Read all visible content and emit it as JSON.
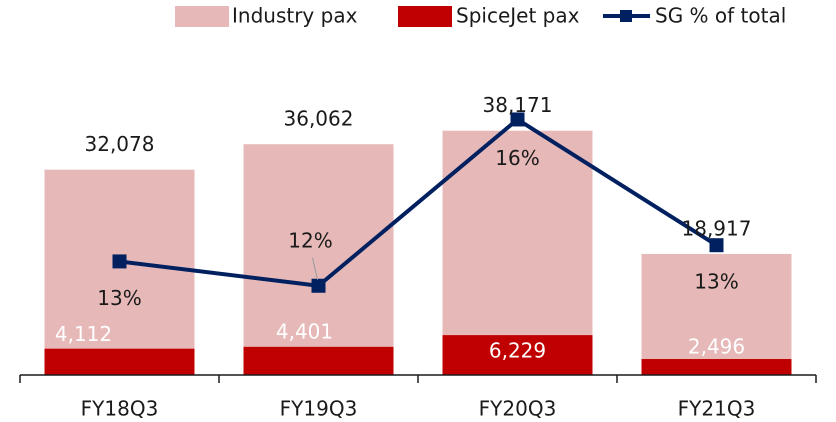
{
  "chart_data": {
    "type": "bar",
    "categories": [
      "FY18Q3",
      "FY19Q3",
      "FY20Q3",
      "FY21Q3"
    ],
    "series": [
      {
        "name": "Industry pax",
        "color": "#e6b9b8",
        "values": [
          32078,
          36062,
          38171,
          18917
        ],
        "value_labels": [
          "32,078",
          "36,062",
          "38,171",
          "18,917"
        ]
      },
      {
        "name": "SpiceJet pax",
        "color": "#c00000",
        "values": [
          4112,
          4401,
          6229,
          2496
        ],
        "value_labels": [
          "4,112",
          "4,401",
          "6,229",
          "2,496"
        ]
      },
      {
        "name": "SG % of total",
        "color": "#002060",
        "type": "line",
        "axis": "y2",
        "values": [
          12.8,
          12.2,
          16.3,
          13.2
        ],
        "value_labels": [
          "13%",
          "12%",
          "16%",
          "13%"
        ]
      }
    ],
    "ylim": [
      0,
      45000
    ],
    "y2lim": [
      10,
      17.1
    ],
    "legend": "top"
  }
}
